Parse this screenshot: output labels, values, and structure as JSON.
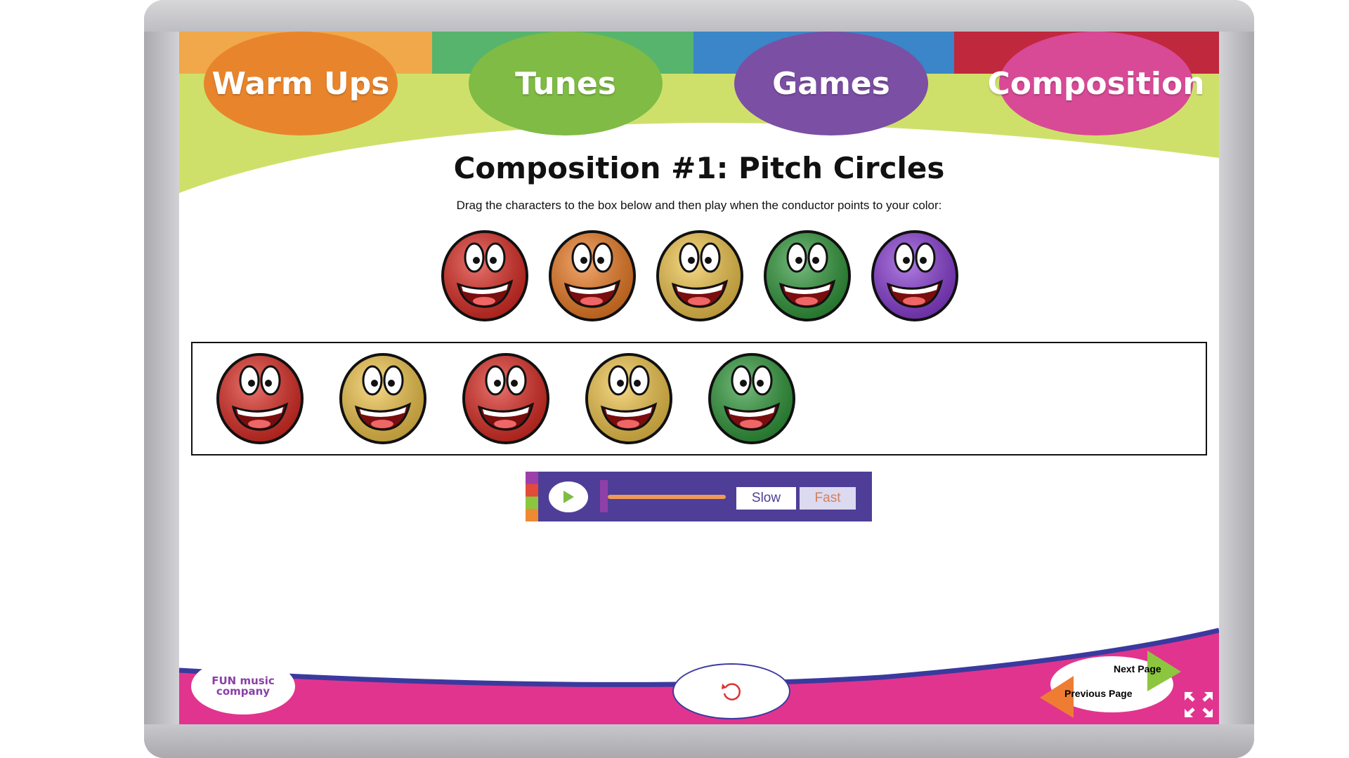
{
  "nav": {
    "tabs": [
      {
        "label": "Warm Ups",
        "color": "#e8852c",
        "strip": "#f0a84a"
      },
      {
        "label": "Tunes",
        "color": "#7fbb45",
        "strip": "#56b46c"
      },
      {
        "label": "Games",
        "color": "#7b4fa3",
        "strip": "#3a86c8"
      },
      {
        "label": "Composition",
        "color": "#d84a96",
        "strip": "#c0283e"
      }
    ]
  },
  "page": {
    "title": "Composition #1: Pitch Circles",
    "instruction": "Drag the characters to the box below and then play when the conductor points to your color:"
  },
  "palette": [
    {
      "color": "#e02a22",
      "name": "red"
    },
    {
      "color": "#f07c22",
      "name": "orange"
    },
    {
      "color": "#f5c84a",
      "name": "yellow"
    },
    {
      "color": "#2f9a3a",
      "name": "green"
    },
    {
      "color": "#8b3cd8",
      "name": "purple"
    }
  ],
  "composition_box": [
    {
      "color": "#e02a22",
      "name": "red"
    },
    {
      "color": "#f5c84a",
      "name": "yellow"
    },
    {
      "color": "#e02a22",
      "name": "red"
    },
    {
      "color": "#f5c84a",
      "name": "yellow"
    },
    {
      "color": "#2f9a3a",
      "name": "green"
    }
  ],
  "player": {
    "slow_label": "Slow",
    "fast_label": "Fast",
    "tempo": 0,
    "selected": "Slow",
    "play_icon": "play-icon"
  },
  "footer": {
    "logo_text": "FUN music company",
    "next_label": "Next Page",
    "prev_label": "Previous Page",
    "reset_icon": "reload-icon",
    "fullscreen_icon": "fullscreen-icon"
  }
}
